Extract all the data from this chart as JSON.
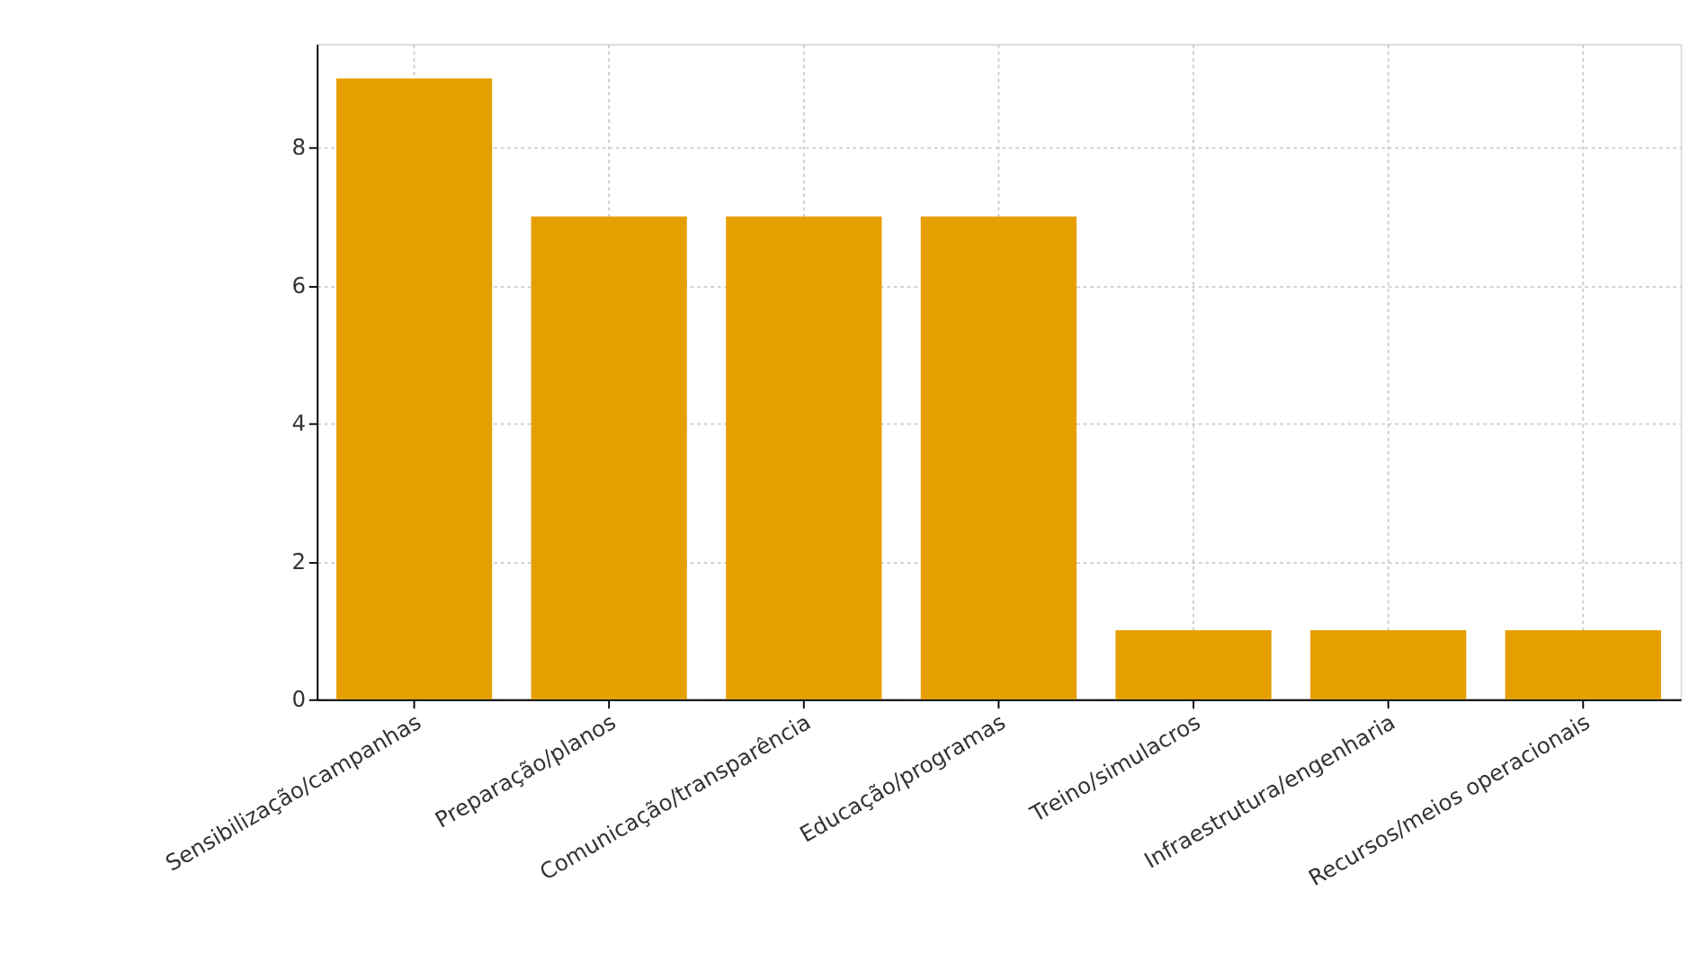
{
  "chart_data": {
    "type": "bar",
    "categories": [
      "Sensibilização/campanhas",
      "Preparação/planos",
      "Comunicação/transparência",
      "Educação/programas",
      "Treino/simulacros",
      "Infraestrutura/engenharia",
      "Recursos/meios operacionais"
    ],
    "values": [
      9,
      7,
      7,
      7,
      1,
      1,
      1
    ],
    "color": "#e69f00",
    "ylim": [
      0,
      9.5
    ],
    "yticks": [
      0,
      2,
      4,
      6,
      8
    ],
    "grid": true
  }
}
